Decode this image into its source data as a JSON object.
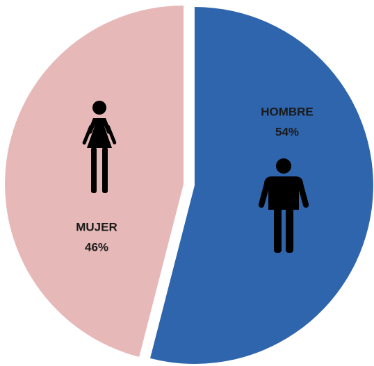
{
  "chart_data": {
    "type": "pie",
    "categories": [
      "HOMBRE",
      "MUJER"
    ],
    "values": [
      54,
      46
    ],
    "value_labels": [
      "54%",
      "46%"
    ],
    "colors": [
      "#2f65ad",
      "#e6b9b8"
    ]
  }
}
